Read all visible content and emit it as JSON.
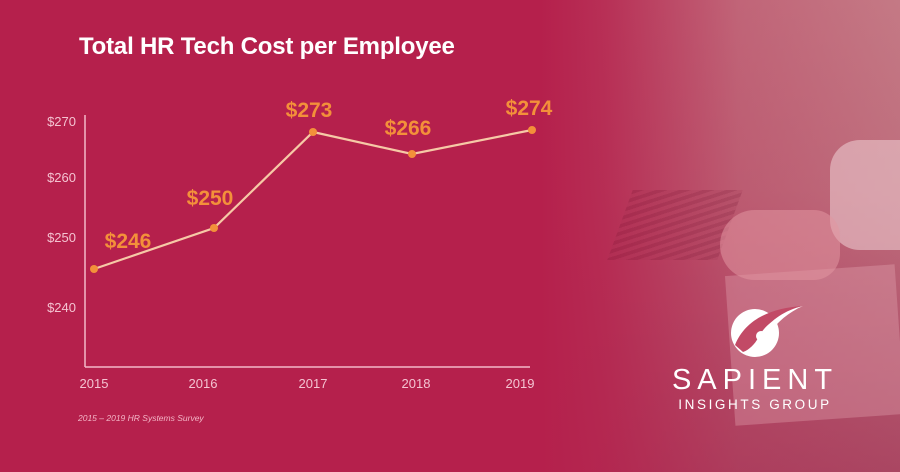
{
  "title": "Total HR Tech Cost per Employee",
  "source": "2015 – 2019 HR Systems Survey",
  "brand": {
    "name": "SAPIENT",
    "tagline": "INSIGHTS GROUP",
    "logo_icon": "sapient-logo-icon"
  },
  "colors": {
    "background": "#b5204c",
    "data_label": "#f3903a",
    "marker": "#f3903a",
    "line": "#f6c9a6",
    "axis": "#f3b8c8",
    "tick_text": "#f4c3d1",
    "title": "#ffffff"
  },
  "chart_data": {
    "type": "line",
    "title": "Total HR Tech Cost per Employee",
    "xlabel": "",
    "ylabel": "",
    "categories": [
      "2015",
      "2016",
      "2017",
      "2018",
      "2019"
    ],
    "values": [
      246,
      250,
      273,
      266,
      274
    ],
    "data_labels": [
      "$246",
      "$250",
      "$273",
      "$266",
      "$274"
    ],
    "y_ticks": [
      "$270",
      "$260",
      "$250",
      "$240"
    ],
    "y_tick_values": [
      270,
      260,
      250,
      240
    ],
    "ylim": [
      233,
      276
    ],
    "grid": false,
    "legend": "none",
    "annotation": "2015 – 2019 HR Systems Survey"
  }
}
